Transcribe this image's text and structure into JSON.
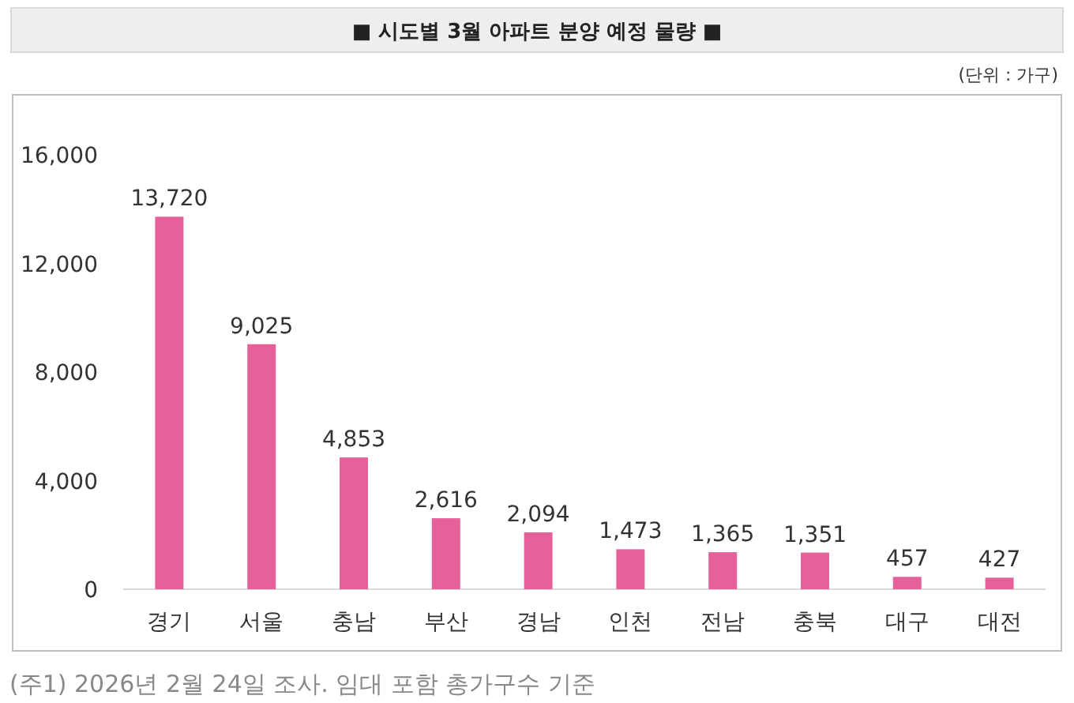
{
  "chart_data": {
    "type": "bar",
    "title": "■ 시도별 3월 아파트 분양 예정 물량 ■",
    "categories": [
      "경기",
      "서울",
      "충남",
      "부산",
      "경남",
      "인천",
      "전남",
      "충북",
      "대구",
      "대전"
    ],
    "values": [
      13720,
      9025,
      4853,
      2616,
      2094,
      1473,
      1365,
      1351,
      457,
      427
    ],
    "value_labels": [
      "13,720",
      "9,025",
      "4,853",
      "2,616",
      "2,094",
      "1,473",
      "1,365",
      "1,351",
      "457",
      "427"
    ],
    "color": "#e5619a",
    "ylim": [
      0,
      16000
    ],
    "yticks": [
      {
        "value": 0,
        "label": "0"
      },
      {
        "value": 4000,
        "label": "4,000"
      },
      {
        "value": 8000,
        "label": "8,000"
      },
      {
        "value": 12000,
        "label": "12,000"
      },
      {
        "value": 16000,
        "label": "16,000"
      }
    ],
    "grid": false,
    "annotations": [
      "(단위 : 가구)",
      "(주1) 2026년 2월 24일 조사. 임대 포함 총가구수 기준"
    ]
  }
}
